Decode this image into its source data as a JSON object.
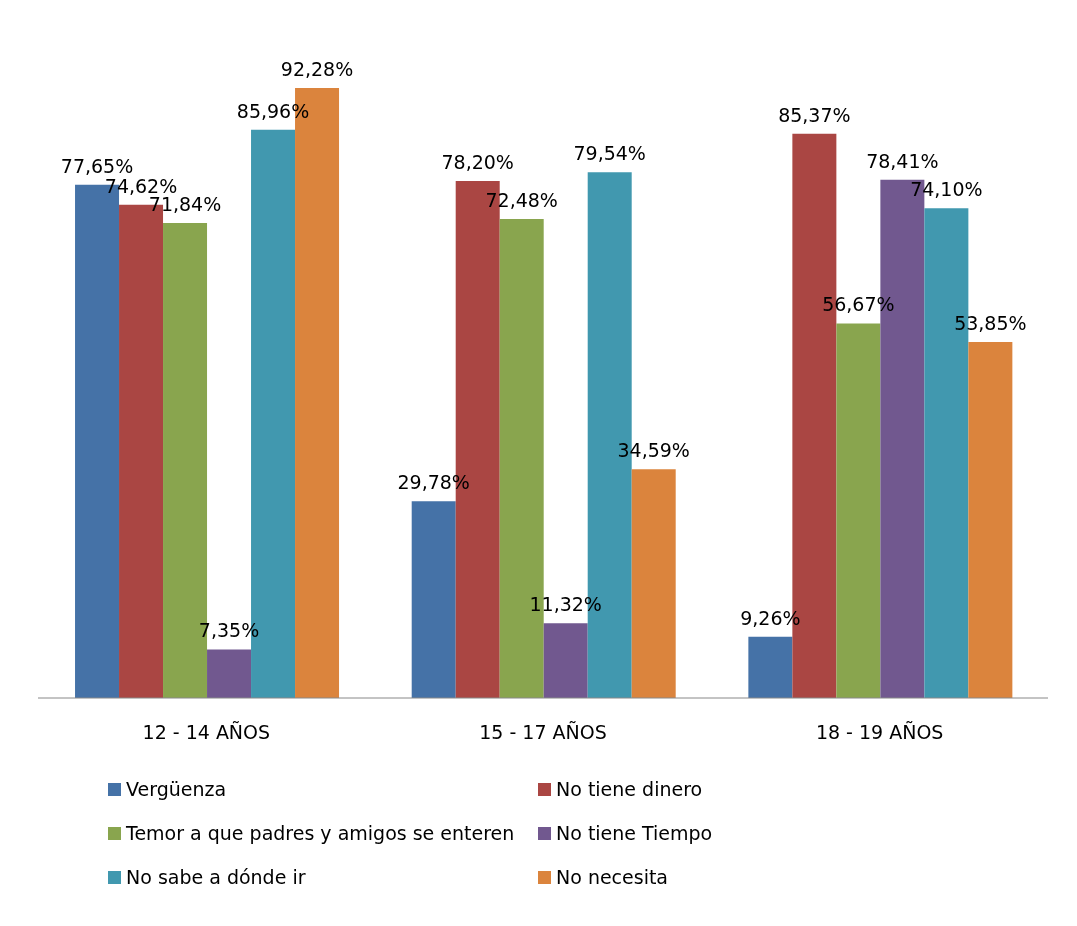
{
  "chart_data": {
    "type": "bar",
    "categories": [
      "12 - 14 AÑOS",
      "15 - 17 AÑOS",
      "18 - 19 AÑOS"
    ],
    "series": [
      {
        "name": "Vergüenza",
        "color": "#4572a7",
        "values": [
          77.65,
          29.78,
          9.26
        ],
        "value_labels": [
          "77,65%",
          "29,78%",
          "9,26%"
        ]
      },
      {
        "name": "No tiene dinero",
        "color": "#aa4643",
        "values": [
          74.62,
          78.2,
          85.37
        ],
        "value_labels": [
          "74,62%",
          "78,20%",
          "85,37%"
        ]
      },
      {
        "name": "Temor a que padres y amigos se enteren",
        "color": "#89a54e",
        "values": [
          71.84,
          72.48,
          56.67
        ],
        "value_labels": [
          "71,84%",
          "72,48%",
          "56,67%"
        ]
      },
      {
        "name": "No tiene Tiempo",
        "color": "#71588f",
        "values": [
          7.35,
          11.32,
          78.41
        ],
        "value_labels": [
          "7,35%",
          "11,32%",
          "78,41%"
        ]
      },
      {
        "name": "No sabe a dónde ir",
        "color": "#4198af",
        "values": [
          85.96,
          79.54,
          74.1
        ],
        "value_labels": [
          "85,96%",
          "79,54%",
          "74,10%"
        ]
      },
      {
        "name": "No necesita",
        "color": "#db843d",
        "values": [
          92.28,
          34.59,
          53.85
        ],
        "value_labels": [
          "92,28%",
          "34,59%",
          "53,85%"
        ]
      }
    ],
    "legend": "bottom",
    "grid": false
  }
}
